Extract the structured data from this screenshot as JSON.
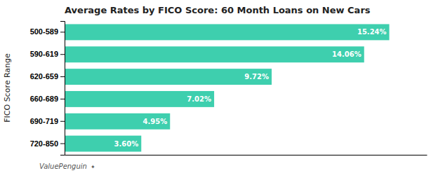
{
  "chart_data": {
    "type": "bar",
    "orientation": "horizontal",
    "title": "Average Rates by FICO Score: 60 Month Loans on New Cars",
    "ylabel": "FICO Score Range",
    "categories": [
      "500-589",
      "590-619",
      "620-659",
      "660-689",
      "690-719",
      "720-850"
    ],
    "values": [
      15.24,
      14.06,
      9.72,
      7.02,
      4.95,
      3.6
    ],
    "value_labels": [
      "15.24%",
      "14.06%",
      "9.72%",
      "7.02%",
      "4.95%",
      "3.60%"
    ],
    "data_labels": true,
    "color": "#3ecfae",
    "xlim": [
      0,
      17
    ],
    "tick_labels": "y",
    "annotations": [
      "ValuePenguin",
      "✦"
    ]
  }
}
